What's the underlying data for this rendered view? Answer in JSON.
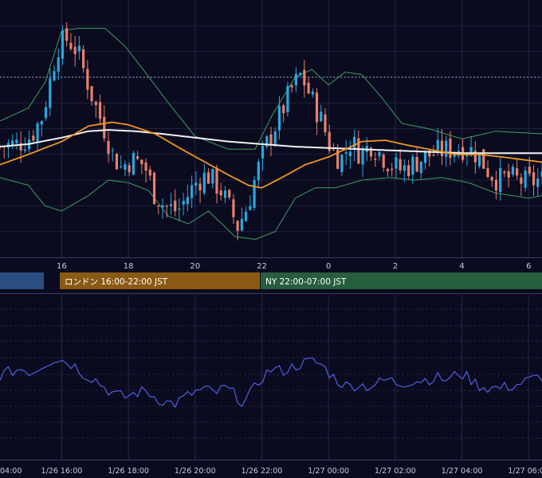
{
  "chart_data": [
    {
      "type": "candlestick",
      "panel": "price",
      "x_tick_labels": [
        "16",
        "18",
        "20",
        "22",
        "0",
        "2",
        "4",
        "6"
      ],
      "x_tick_hours": [
        16,
        18,
        20,
        22,
        24,
        26,
        28,
        30
      ],
      "x_range_hours": [
        14.15,
        30.4
      ],
      "y_range": [
        0,
        100
      ],
      "grid": true,
      "dotted_reference_level": 70,
      "colors": {
        "up": "#29a8e0",
        "down": "#e8806c",
        "ma_fast": "#f0961e",
        "ma_slow": "#f2f2f2",
        "bands": "#3e9e5e"
      },
      "candle_anchors": [
        [
          14.15,
          43
        ],
        [
          14.8,
          44
        ],
        [
          15.2,
          47
        ],
        [
          15.55,
          55
        ],
        [
          15.8,
          70
        ],
        [
          16.0,
          82
        ],
        [
          16.3,
          85
        ],
        [
          16.6,
          80
        ],
        [
          16.85,
          70
        ],
        [
          17.1,
          60
        ],
        [
          17.4,
          50
        ],
        [
          17.65,
          40
        ],
        [
          17.9,
          35
        ],
        [
          18.2,
          38
        ],
        [
          18.6,
          36
        ],
        [
          18.9,
          25
        ],
        [
          19.2,
          20
        ],
        [
          19.6,
          18
        ],
        [
          19.9,
          24
        ],
        [
          20.2,
          30
        ],
        [
          20.5,
          32
        ],
        [
          20.9,
          26
        ],
        [
          21.2,
          18
        ],
        [
          21.4,
          12
        ],
        [
          21.7,
          20
        ],
        [
          21.95,
          32
        ],
        [
          22.3,
          45
        ],
        [
          22.7,
          56
        ],
        [
          23.0,
          65
        ],
        [
          23.3,
          71
        ],
        [
          23.6,
          62
        ],
        [
          23.95,
          52
        ],
        [
          24.2,
          42
        ],
        [
          24.5,
          38
        ],
        [
          24.8,
          45
        ],
        [
          25.1,
          40
        ],
        [
          25.4,
          44
        ],
        [
          25.7,
          40
        ],
        [
          26.0,
          36
        ],
        [
          26.3,
          34
        ],
        [
          26.6,
          36
        ],
        [
          27.0,
          39
        ],
        [
          27.4,
          41
        ],
        [
          27.8,
          42
        ],
        [
          28.2,
          43
        ],
        [
          28.6,
          40
        ],
        [
          28.9,
          34
        ],
        [
          29.2,
          30
        ],
        [
          29.5,
          31
        ],
        [
          29.8,
          30
        ],
        [
          30.1,
          29
        ],
        [
          30.4,
          30
        ]
      ],
      "series": [
        {
          "key": "ma_fast",
          "points": [
            [
              14.15,
              36
            ],
            [
              15,
              40
            ],
            [
              16,
              45
            ],
            [
              16.8,
              51
            ],
            [
              17.5,
              52.5
            ],
            [
              18,
              51.5
            ],
            [
              18.8,
              48
            ],
            [
              19.6,
              42
            ],
            [
              20.3,
              37
            ],
            [
              21,
              32
            ],
            [
              21.6,
              28
            ],
            [
              22,
              27
            ],
            [
              22.6,
              31
            ],
            [
              23.3,
              36
            ],
            [
              24,
              39
            ],
            [
              24.5,
              42
            ],
            [
              25,
              45
            ],
            [
              25.7,
              45.5
            ],
            [
              26.4,
              43.5
            ],
            [
              27,
              42
            ],
            [
              27.8,
              40
            ],
            [
              28.5,
              40
            ],
            [
              29.2,
              39
            ],
            [
              30.4,
              37
            ]
          ]
        },
        {
          "key": "ma_slow",
          "points": [
            [
              14.15,
              43
            ],
            [
              15,
              44
            ],
            [
              16,
              46.5
            ],
            [
              16.8,
              49
            ],
            [
              17.4,
              49.5
            ],
            [
              18.2,
              49
            ],
            [
              19,
              48
            ],
            [
              20,
              46.5
            ],
            [
              21,
              45
            ],
            [
              22,
              44
            ],
            [
              23,
              43
            ],
            [
              24,
              42.5
            ],
            [
              25,
              42
            ],
            [
              26,
              41.5
            ],
            [
              27,
              41
            ],
            [
              28,
              40.5
            ],
            [
              29,
              40.5
            ],
            [
              30.4,
              40.5
            ]
          ]
        },
        {
          "key": "bands",
          "points": [
            [
              14.15,
              53
            ],
            [
              15,
              58
            ],
            [
              15.5,
              68
            ],
            [
              16,
              88
            ],
            [
              16.5,
              89
            ],
            [
              17.3,
              89
            ],
            [
              17.9,
              82
            ],
            [
              18.5,
              72
            ],
            [
              19.2,
              60
            ],
            [
              20,
              47
            ],
            [
              21,
              42
            ],
            [
              21.8,
              42
            ],
            [
              22.3,
              55
            ],
            [
              23,
              70
            ],
            [
              23.5,
              73
            ],
            [
              24,
              67
            ],
            [
              24.5,
              72
            ],
            [
              25,
              71
            ],
            [
              25.6,
              62
            ],
            [
              26.2,
              52
            ],
            [
              27,
              50
            ],
            [
              28,
              46
            ],
            [
              29,
              49
            ],
            [
              30.4,
              48
            ]
          ]
        },
        {
          "key": "bands",
          "points": [
            [
              14.15,
              31
            ],
            [
              15,
              28
            ],
            [
              15.5,
              20
            ],
            [
              16,
              18
            ],
            [
              16.8,
              24
            ],
            [
              17.4,
              30
            ],
            [
              18,
              29
            ],
            [
              18.6,
              26
            ],
            [
              19.2,
              16
            ],
            [
              19.8,
              13
            ],
            [
              20.4,
              18
            ],
            [
              21.2,
              8
            ],
            [
              21.8,
              7
            ],
            [
              22.4,
              10
            ],
            [
              23,
              23
            ],
            [
              23.6,
              27
            ],
            [
              24.2,
              27
            ],
            [
              25,
              30
            ],
            [
              25.8,
              31
            ],
            [
              26.6,
              30
            ],
            [
              27.4,
              31
            ],
            [
              28.2,
              29
            ],
            [
              29,
              25
            ],
            [
              30,
              23
            ],
            [
              30.4,
              24
            ]
          ]
        }
      ]
    },
    {
      "type": "line",
      "panel": "oscillator",
      "x_tick_labels": [
        "1/26 16:00",
        "1/26 18:00",
        "1/26 20:00",
        "1/26 22:00",
        "1/27 00:00",
        "1/27 02:00",
        "1/27 04:00",
        "1/27 06:00"
      ],
      "first_x_tick_label_partial": "04:00",
      "x_range_hours": [
        14.15,
        30.4
      ],
      "y_range": [
        0,
        100
      ],
      "grid": true,
      "line_color": "#4f5fe0",
      "points": [
        [
          14.15,
          55
        ],
        [
          14.5,
          58
        ],
        [
          14.8,
          60
        ],
        [
          15.1,
          57
        ],
        [
          15.5,
          64
        ],
        [
          15.8,
          68
        ],
        [
          16.1,
          66
        ],
        [
          16.4,
          62
        ],
        [
          16.7,
          55
        ],
        [
          17.0,
          52
        ],
        [
          17.3,
          45
        ],
        [
          17.6,
          40
        ],
        [
          17.9,
          38
        ],
        [
          18.2,
          41
        ],
        [
          18.5,
          43
        ],
        [
          18.8,
          38
        ],
        [
          19.1,
          34
        ],
        [
          19.4,
          33
        ],
        [
          19.7,
          38
        ],
        [
          20.0,
          42
        ],
        [
          20.3,
          44
        ],
        [
          20.6,
          41
        ],
        [
          20.9,
          45
        ],
        [
          21.2,
          40
        ],
        [
          21.45,
          33
        ],
        [
          21.7,
          42
        ],
        [
          22.0,
          53
        ],
        [
          22.3,
          60
        ],
        [
          22.6,
          58
        ],
        [
          22.9,
          61
        ],
        [
          23.2,
          64
        ],
        [
          23.5,
          66
        ],
        [
          23.8,
          63
        ],
        [
          24.0,
          57
        ],
        [
          24.3,
          50
        ],
        [
          24.6,
          46
        ],
        [
          24.9,
          48
        ],
        [
          25.2,
          46
        ],
        [
          25.5,
          49
        ],
        [
          25.8,
          52
        ],
        [
          26.1,
          48
        ],
        [
          26.4,
          50
        ],
        [
          26.7,
          51
        ],
        [
          27.0,
          52
        ],
        [
          27.3,
          53
        ],
        [
          27.6,
          51
        ],
        [
          27.9,
          57
        ],
        [
          28.2,
          53
        ],
        [
          28.5,
          47
        ],
        [
          28.8,
          45
        ],
        [
          29.1,
          45
        ],
        [
          29.4,
          46
        ],
        [
          29.7,
          48
        ],
        [
          30.0,
          51
        ],
        [
          30.4,
          54
        ]
      ]
    }
  ],
  "sessions": [
    {
      "label": "",
      "color": "#2a4e80"
    },
    {
      "label": "ロンドン 16:00-22:00 JST",
      "color": "#8a5a14"
    },
    {
      "label": "NY 22:00-07:00 JST",
      "color": "#265e3e"
    }
  ]
}
